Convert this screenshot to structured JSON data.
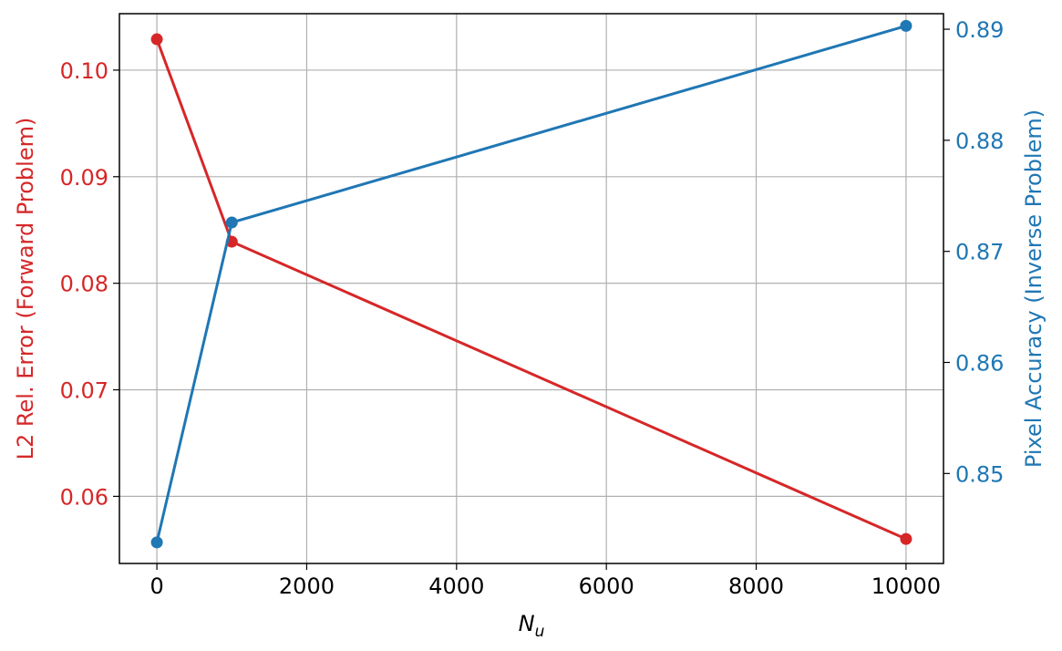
{
  "chart_data": {
    "type": "line",
    "title": "",
    "xlabel_base": "N",
    "xlabel_sub": "u",
    "xlim": [
      -500,
      10500
    ],
    "xticks": [
      0,
      2000,
      4000,
      6000,
      8000,
      10000
    ],
    "xtick_labels": [
      "0",
      "2000",
      "4000",
      "6000",
      "8000",
      "10000"
    ],
    "grid": true,
    "legend": "none",
    "left_axis": {
      "label": "L2 Rel. Error (Forward Problem)",
      "color": "#d62728",
      "ylim": [
        0.0537,
        0.1053
      ],
      "ticks": [
        0.06,
        0.07,
        0.08,
        0.09,
        0.1
      ],
      "tick_labels": [
        "0.06",
        "0.07",
        "0.08",
        "0.09",
        "0.10"
      ]
    },
    "right_axis": {
      "label": "Pixel Accuracy (Inverse Problem)",
      "color": "#1f77b4",
      "ylim": [
        0.8419,
        0.8914
      ],
      "ticks": [
        0.85,
        0.86,
        0.87,
        0.88,
        0.89
      ],
      "tick_labels": [
        "0.85",
        "0.86",
        "0.87",
        "0.88",
        "0.89"
      ]
    },
    "series": [
      {
        "axis": "left",
        "color": "#d62728",
        "x": [
          0,
          1000,
          10000
        ],
        "y": [
          0.1029,
          0.0839,
          0.056
        ]
      },
      {
        "axis": "right",
        "color": "#1f77b4",
        "x": [
          0,
          1000,
          10000
        ],
        "y": [
          0.8438,
          0.8726,
          0.8903
        ]
      }
    ]
  }
}
